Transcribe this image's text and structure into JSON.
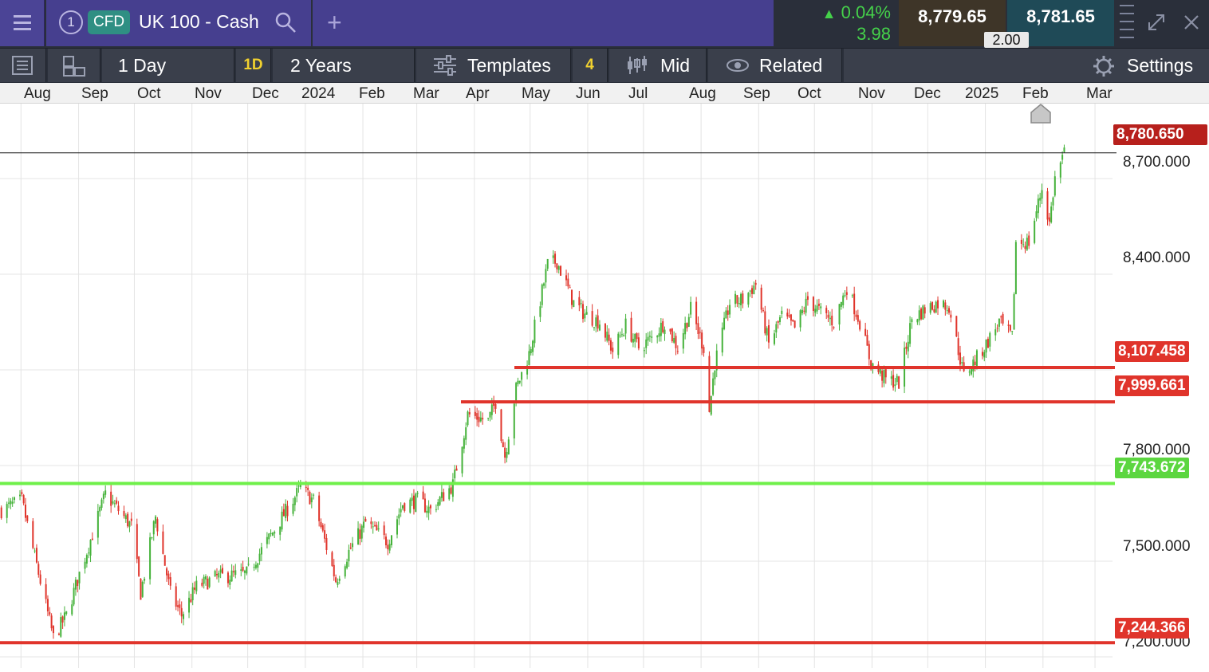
{
  "header": {
    "tab_number": "1",
    "instrument_type": "CFD",
    "instrument_name": "UK 100 - Cash",
    "change_percent": "0.04%",
    "change_points": "3.98",
    "sell_price": "8,779.65",
    "buy_price": "8,781.65",
    "spread": "2.00"
  },
  "toolbar": {
    "interval": "1 Day",
    "interval_short": "1D",
    "range": "2 Years",
    "templates": "Templates",
    "indicator_count": "4",
    "price_type": "Mid",
    "related": "Related",
    "settings": "Settings"
  },
  "icons": [
    "hamburger-icon",
    "search-icon",
    "plus-icon",
    "triangle-up-icon",
    "drag-handle-icon",
    "expand-icon",
    "close-icon",
    "list-icon",
    "layout-icon",
    "sliders-icon",
    "candlestick-icon",
    "eye-icon",
    "gear-icon"
  ],
  "colors": {
    "bull": "#45b23a",
    "bear": "#e0342b",
    "resistance": "#e0342b",
    "support": "#6ff04a",
    "current": "#b7201c",
    "brand": "#463f8f"
  },
  "axis": {
    "months": [
      "Aug",
      "Sep",
      "Oct",
      "Nov",
      "Dec",
      "2024",
      "Feb",
      "Mar",
      "Apr",
      "May",
      "Jun",
      "Jul",
      "Aug",
      "Sep",
      "Oct",
      "Nov",
      "Dec",
      "2025",
      "Feb",
      "Mar"
    ]
  },
  "chart_data": {
    "type": "candlestick",
    "y_ticks": [
      "8,700.000",
      "8,400.000",
      "7,800.000",
      "7,500.000",
      "7,200.000"
    ],
    "y_tick_values": [
      8700,
      8400,
      7800,
      7500,
      7200
    ],
    "ylim": [
      7160,
      8940
    ],
    "current_price": {
      "label": "8,780.650",
      "value": 8780.65
    },
    "levels": [
      {
        "label": "8,107.458",
        "value": 8107.458,
        "color": "red",
        "start": "Apr"
      },
      {
        "label": "7,999.661",
        "value": 7999.661,
        "color": "red",
        "start": "Mar"
      },
      {
        "label": "7,743.672",
        "value": 7743.672,
        "color": "green",
        "start": "Aug"
      },
      {
        "label": "7,244.366",
        "value": 7244.366,
        "color": "red",
        "start": "Aug"
      }
    ],
    "close_anchors": [
      [
        "2023-07-21",
        7660
      ],
      [
        "2023-08-01",
        7690
      ],
      [
        "2023-08-18",
        7260
      ],
      [
        "2023-08-25",
        7330
      ],
      [
        "2023-09-01",
        7460
      ],
      [
        "2023-09-15",
        7710
      ],
      [
        "2023-09-29",
        7610
      ],
      [
        "2023-10-04",
        7400
      ],
      [
        "2023-10-12",
        7640
      ],
      [
        "2023-10-20",
        7400
      ],
      [
        "2023-10-26",
        7330
      ],
      [
        "2023-11-03",
        7420
      ],
      [
        "2023-11-14",
        7450
      ],
      [
        "2023-11-30",
        7460
      ],
      [
        "2023-12-14",
        7590
      ],
      [
        "2023-12-29",
        7730
      ],
      [
        "2024-01-05",
        7690
      ],
      [
        "2024-01-17",
        7440
      ],
      [
        "2024-01-24",
        7530
      ],
      [
        "2024-02-02",
        7620
      ],
      [
        "2024-02-14",
        7560
      ],
      [
        "2024-02-22",
        7680
      ],
      [
        "2024-03-01",
        7690
      ],
      [
        "2024-03-08",
        7660
      ],
      [
        "2024-03-20",
        7740
      ],
      [
        "2024-03-28",
        7960
      ],
      [
        "2024-04-08",
        7940
      ],
      [
        "2024-04-12",
        8000
      ],
      [
        "2024-04-17",
        7830
      ],
      [
        "2024-04-23",
        8040
      ],
      [
        "2024-04-30",
        8150
      ],
      [
        "2024-05-10",
        8430
      ],
      [
        "2024-05-15",
        8440
      ],
      [
        "2024-05-24",
        8310
      ],
      [
        "2024-05-31",
        8270
      ],
      [
        "2024-06-07",
        8250
      ],
      [
        "2024-06-14",
        8160
      ],
      [
        "2024-06-21",
        8240
      ],
      [
        "2024-06-28",
        8170
      ],
      [
        "2024-07-05",
        8200
      ],
      [
        "2024-07-12",
        8250
      ],
      [
        "2024-07-19",
        8170
      ],
      [
        "2024-07-26",
        8290
      ],
      [
        "2024-08-02",
        8170
      ],
      [
        "2024-08-05",
        7970
      ],
      [
        "2024-08-08",
        8120
      ],
      [
        "2024-08-16",
        8310
      ],
      [
        "2024-08-23",
        8320
      ],
      [
        "2024-08-30",
        8370
      ],
      [
        "2024-09-06",
        8180
      ],
      [
        "2024-09-13",
        8270
      ],
      [
        "2024-09-20",
        8230
      ],
      [
        "2024-09-27",
        8320
      ],
      [
        "2024-10-04",
        8280
      ],
      [
        "2024-10-11",
        8250
      ],
      [
        "2024-10-18",
        8360
      ],
      [
        "2024-10-25",
        8250
      ],
      [
        "2024-10-31",
        8120
      ],
      [
        "2024-11-08",
        8070
      ],
      [
        "2024-11-15",
        8060
      ],
      [
        "2024-11-22",
        8260
      ],
      [
        "2024-11-29",
        8290
      ],
      [
        "2024-12-06",
        8310
      ],
      [
        "2024-12-12",
        8300
      ],
      [
        "2024-12-20",
        8080
      ],
      [
        "2024-12-31",
        8170
      ],
      [
        "2025-01-08",
        8250
      ],
      [
        "2025-01-15",
        8200
      ],
      [
        "2025-01-17",
        8500
      ],
      [
        "2025-01-24",
        8500
      ],
      [
        "2025-01-31",
        8670
      ],
      [
        "2025-02-04",
        8560
      ],
      [
        "2025-02-07",
        8700
      ],
      [
        "2025-02-12",
        8780
      ]
    ]
  }
}
